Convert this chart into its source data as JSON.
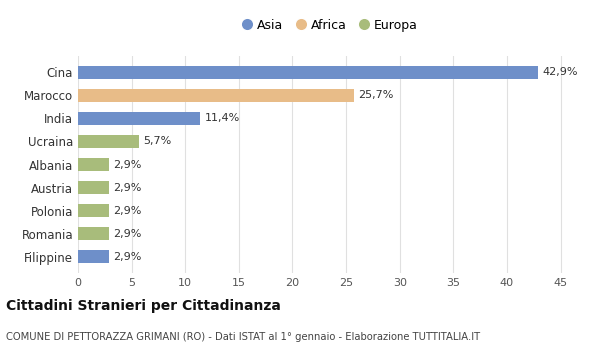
{
  "categories": [
    "Filippine",
    "Romania",
    "Polonia",
    "Austria",
    "Albania",
    "Ucraina",
    "India",
    "Marocco",
    "Cina"
  ],
  "values": [
    2.9,
    2.9,
    2.9,
    2.9,
    2.9,
    5.7,
    11.4,
    25.7,
    42.9
  ],
  "colors": [
    "#6e8fc9",
    "#a8bc7b",
    "#a8bc7b",
    "#a8bc7b",
    "#a8bc7b",
    "#a8bc7b",
    "#6e8fc9",
    "#e8bc88",
    "#6e8fc9"
  ],
  "labels": [
    "2,9%",
    "2,9%",
    "2,9%",
    "2,9%",
    "2,9%",
    "5,7%",
    "11,4%",
    "25,7%",
    "42,9%"
  ],
  "legend": [
    {
      "label": "Asia",
      "color": "#6e8fc9"
    },
    {
      "label": "Africa",
      "color": "#e8bc88"
    },
    {
      "label": "Europa",
      "color": "#a8bc7b"
    }
  ],
  "xlim": [
    0,
    47
  ],
  "xticks": [
    0,
    5,
    10,
    15,
    20,
    25,
    30,
    35,
    40,
    45
  ],
  "title": "Cittadini Stranieri per Cittadinanza",
  "subtitle": "COMUNE DI PETTORAZZA GRIMANI (RO) - Dati ISTAT al 1° gennaio - Elaborazione TUTTITALIA.IT",
  "fig_bg_color": "#ffffff",
  "plot_bg_color": "#ffffff",
  "grid_color": "#e0e0e0"
}
